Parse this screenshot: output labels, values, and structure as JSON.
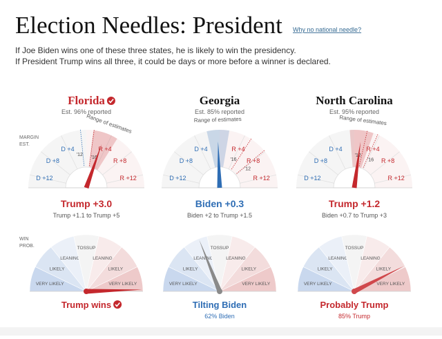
{
  "header": {
    "title": "Election Needles: President",
    "link": "Why no national needle?"
  },
  "intro": [
    "If Joe Biden wins one of these three states, he is likely to win the presidency.",
    "If President Trump wins all three, it could be days or more before a winner is declared."
  ],
  "margin_axis": {
    "title": [
      "MARGIN",
      "EST."
    ],
    "lim": [
      -14,
      14
    ],
    "ticks": [
      {
        "value": -12,
        "label": "D +12"
      },
      {
        "value": -8,
        "label": "D +8"
      },
      {
        "value": -4,
        "label": "D +4"
      },
      {
        "value": 4,
        "label": "R +4"
      },
      {
        "value": 8,
        "label": "R +8"
      },
      {
        "value": 12,
        "label": "R +12"
      }
    ],
    "range_label": "Range of estimates"
  },
  "win_axis": {
    "title": [
      "WIN",
      "PROB."
    ],
    "lim": [
      -100,
      100
    ],
    "bands": [
      "VERY LIKELY",
      "LIKELY",
      "LEANING",
      "TOSSUP",
      "LEANING",
      "LIKELY",
      "VERY LIKELY"
    ]
  },
  "colors": {
    "trump": "#c4282d",
    "biden": "#2e6db4"
  },
  "states": [
    {
      "name": "Florida",
      "called": true,
      "reported": "Est. 96% reported",
      "margin": {
        "value": 3.0,
        "label": "Trump +3.0"
      },
      "range": {
        "values": [
          1.1,
          5
        ],
        "label": "Trump +1.1 to Trump +5"
      },
      "past": [
        {
          "label": "'12",
          "value": -0.9
        },
        {
          "label": "'16",
          "value": 1.2
        }
      ],
      "win": {
        "value": 99,
        "label": "Trump wins",
        "needle_color": "#c4282d"
      }
    },
    {
      "name": "Georgia",
      "called": false,
      "reported": "Est. 85% reported",
      "margin": {
        "value": -0.3,
        "label": "Biden +0.3"
      },
      "range": {
        "values": [
          -2,
          1.5
        ],
        "label": "Biden +2 to Trump +1.5"
      },
      "past": [
        {
          "label": "'16",
          "value": 5.1
        },
        {
          "label": "'12",
          "value": 7.8
        }
      ],
      "win": {
        "value": -62,
        "label": "Tilting Biden",
        "sub": "62% Biden",
        "needle_color": "#8a8a8a"
      }
    },
    {
      "name": "North Carolina",
      "called": false,
      "reported": "Est. 95% reported",
      "margin": {
        "value": 1.2,
        "label": "Trump +1.2"
      },
      "range": {
        "values": [
          -0.7,
          3
        ],
        "label": "Biden +0.7 to Trump +3"
      },
      "past": [
        {
          "label": "'12",
          "value": 2.0
        },
        {
          "label": "'16",
          "value": 3.7
        }
      ],
      "win": {
        "value": 85,
        "label": "Probably Trump",
        "sub": "85% Trump",
        "needle_color": "#d0484c"
      }
    }
  ]
}
